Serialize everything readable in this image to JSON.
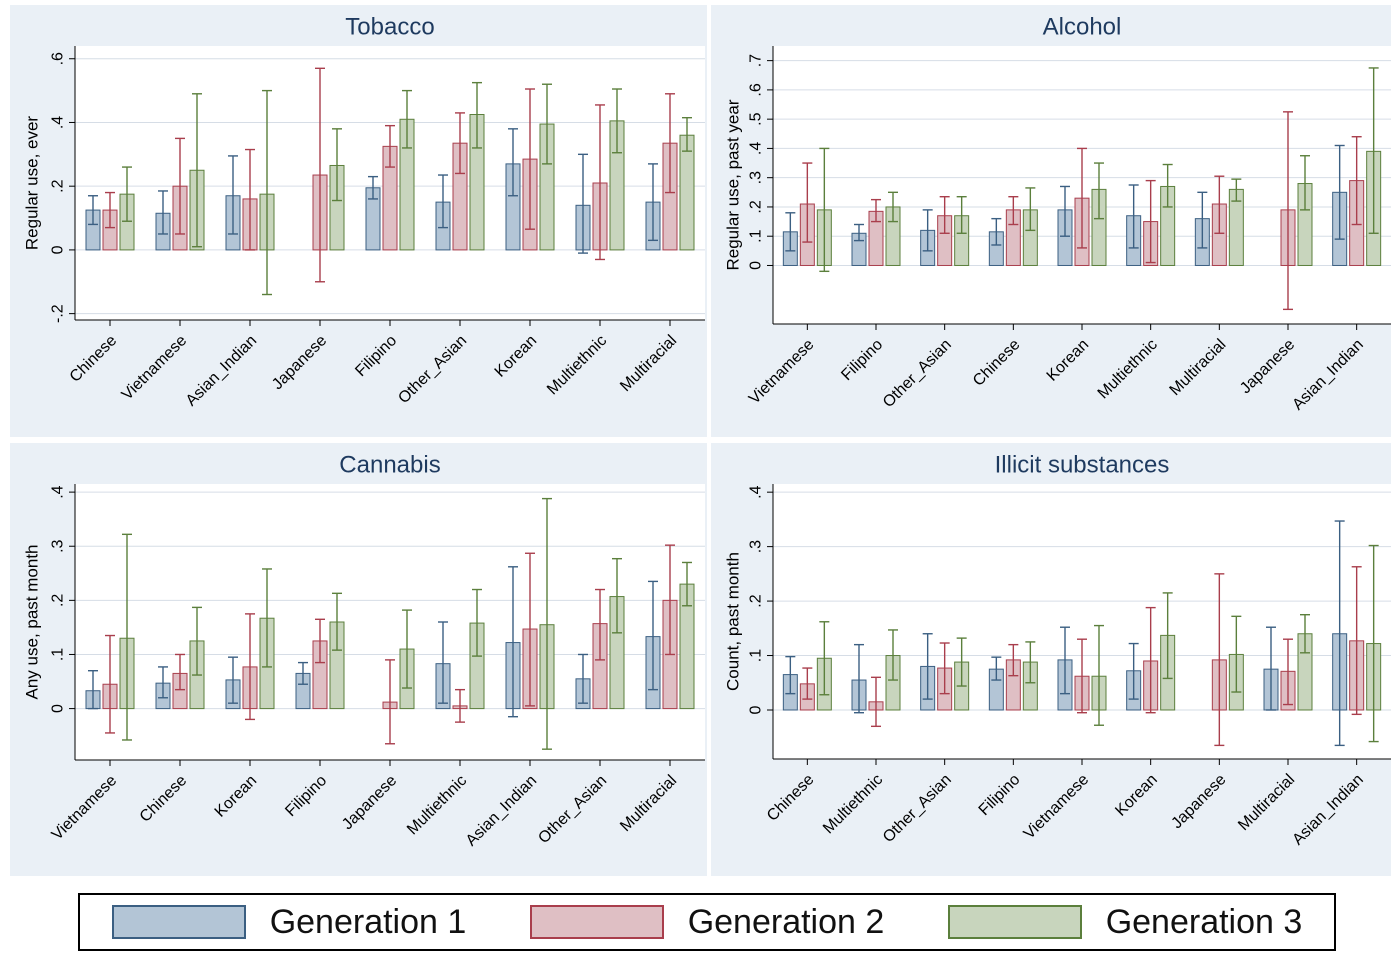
{
  "colors": {
    "gen1_fill": "#b3c5d6",
    "gen1_line": "#3b5f82",
    "gen2_fill": "#dfbfc4",
    "gen2_line": "#a93e4c",
    "gen3_fill": "#c8d5bd",
    "gen3_line": "#5b7f3c",
    "title_text": "#1e3a5f",
    "panel_bg": "#eaf0f6",
    "grid": "#d6dde6"
  },
  "legend": {
    "position": "bottom",
    "items": [
      {
        "label": "Generation 1",
        "series": 0
      },
      {
        "label": "Generation 2",
        "series": 1
      },
      {
        "label": "Generation 3",
        "series": 2
      }
    ]
  },
  "chart_data": [
    {
      "type": "bar",
      "title": "Tobacco",
      "ylabel": "Regular use, ever",
      "ylim": [
        -0.22,
        0.64
      ],
      "yticks": [
        -0.2,
        0,
        0.2,
        0.4,
        0.6
      ],
      "ytick_labels": [
        "-.2",
        "0",
        ".2",
        ".4",
        ".6"
      ],
      "categories": [
        "Chinese",
        "Vietnamese",
        "Asian_Indian",
        "Japanese",
        "Filipino",
        "Other_Asian",
        "Korean",
        "Multiethnic",
        "Multiracial"
      ],
      "series": [
        {
          "name": "Generation 1",
          "values": [
            0.125,
            0.115,
            0.17,
            null,
            0.195,
            0.15,
            0.27,
            0.14,
            0.15
          ],
          "lower": [
            0.08,
            0.05,
            0.05,
            null,
            0.16,
            0.07,
            0.17,
            -0.01,
            0.03
          ],
          "upper": [
            0.17,
            0.185,
            0.295,
            null,
            0.23,
            0.235,
            0.38,
            0.3,
            0.27
          ]
        },
        {
          "name": "Generation 2",
          "values": [
            0.125,
            0.2,
            0.16,
            0.235,
            0.325,
            0.335,
            0.285,
            0.21,
            0.335
          ],
          "lower": [
            0.07,
            0.05,
            0.0,
            -0.1,
            0.26,
            0.24,
            0.065,
            -0.03,
            0.18
          ],
          "upper": [
            0.18,
            0.35,
            0.315,
            0.57,
            0.39,
            0.43,
            0.505,
            0.455,
            0.49
          ]
        },
        {
          "name": "Generation 3",
          "values": [
            0.175,
            0.25,
            0.175,
            0.265,
            0.41,
            0.425,
            0.395,
            0.405,
            0.36
          ],
          "lower": [
            0.09,
            0.01,
            -0.14,
            0.155,
            0.32,
            0.32,
            0.27,
            0.305,
            0.31
          ],
          "upper": [
            0.26,
            0.49,
            0.5,
            0.38,
            0.5,
            0.525,
            0.52,
            0.505,
            0.415
          ]
        }
      ]
    },
    {
      "type": "bar",
      "title": "Alcohol",
      "ylabel": "Regular use, past year",
      "ylim": [
        -0.2,
        0.75
      ],
      "yticks": [
        0,
        0.1,
        0.2,
        0.3,
        0.4,
        0.5,
        0.6,
        0.7
      ],
      "ytick_labels": [
        "0",
        ".1",
        ".2",
        ".3",
        ".4",
        ".5",
        ".6",
        ".7"
      ],
      "categories": [
        "Vietnamese",
        "Filipino",
        "Other_Asian",
        "Chinese",
        "Korean",
        "Multiethnic",
        "Multiracial",
        "Japanese",
        "Asian_Indian"
      ],
      "series": [
        {
          "name": "Generation 1",
          "values": [
            0.115,
            0.11,
            0.12,
            0.115,
            0.19,
            0.17,
            0.16,
            null,
            0.25
          ],
          "lower": [
            0.05,
            0.085,
            0.05,
            0.07,
            0.1,
            0.06,
            0.06,
            null,
            0.09
          ],
          "upper": [
            0.18,
            0.14,
            0.19,
            0.16,
            0.27,
            0.275,
            0.25,
            null,
            0.41
          ]
        },
        {
          "name": "Generation 2",
          "values": [
            0.21,
            0.185,
            0.17,
            0.19,
            0.23,
            0.15,
            0.21,
            0.19,
            0.29
          ],
          "lower": [
            0.08,
            0.15,
            0.11,
            0.14,
            0.06,
            0.01,
            0.11,
            -0.15,
            0.14
          ],
          "upper": [
            0.35,
            0.225,
            0.235,
            0.235,
            0.4,
            0.29,
            0.305,
            0.525,
            0.44
          ]
        },
        {
          "name": "Generation 3",
          "values": [
            0.19,
            0.2,
            0.17,
            0.19,
            0.26,
            0.27,
            0.26,
            0.28,
            0.39
          ],
          "lower": [
            -0.02,
            0.15,
            0.11,
            0.12,
            0.16,
            0.2,
            0.22,
            0.19,
            0.11
          ],
          "upper": [
            0.4,
            0.25,
            0.235,
            0.265,
            0.35,
            0.345,
            0.295,
            0.375,
            0.675
          ]
        }
      ]
    },
    {
      "type": "bar",
      "title": "Cannabis",
      "ylabel": "Any use, past month",
      "ylim": [
        -0.095,
        0.415
      ],
      "yticks": [
        0,
        0.1,
        0.2,
        0.3,
        0.4
      ],
      "ytick_labels": [
        "0",
        ".1",
        ".2",
        ".3",
        ".4"
      ],
      "categories": [
        "Vietnamese",
        "Chinese",
        "Korean",
        "Filipino",
        "Japanese",
        "Multiethnic",
        "Asian_Indian",
        "Other_Asian",
        "Multiracial"
      ],
      "series": [
        {
          "name": "Generation 1",
          "values": [
            0.033,
            0.047,
            0.053,
            0.065,
            null,
            0.083,
            0.122,
            0.055,
            0.133
          ],
          "lower": [
            0.0,
            0.02,
            0.01,
            0.045,
            null,
            0.01,
            -0.015,
            0.01,
            0.035
          ],
          "upper": [
            0.07,
            0.077,
            0.095,
            0.085,
            null,
            0.16,
            0.262,
            0.1,
            0.235
          ]
        },
        {
          "name": "Generation 2",
          "values": [
            0.045,
            0.065,
            0.077,
            0.125,
            0.012,
            0.005,
            0.147,
            0.157,
            0.2
          ],
          "lower": [
            -0.045,
            0.035,
            -0.02,
            0.085,
            -0.065,
            -0.025,
            0.005,
            0.09,
            0.1
          ],
          "upper": [
            0.135,
            0.1,
            0.175,
            0.165,
            0.09,
            0.035,
            0.287,
            0.22,
            0.302
          ]
        },
        {
          "name": "Generation 3",
          "values": [
            0.13,
            0.125,
            0.167,
            0.16,
            0.11,
            0.158,
            0.155,
            0.207,
            0.23
          ],
          "lower": [
            -0.058,
            0.062,
            0.077,
            0.108,
            0.038,
            0.097,
            -0.075,
            0.14,
            0.19
          ],
          "upper": [
            0.322,
            0.187,
            0.258,
            0.213,
            0.182,
            0.22,
            0.388,
            0.277,
            0.27
          ]
        }
      ]
    },
    {
      "type": "bar",
      "title": "Illicit substances",
      "ylabel": "Count, past month",
      "ylim": [
        -0.09,
        0.415
      ],
      "yticks": [
        0,
        0.1,
        0.2,
        0.3,
        0.4
      ],
      "ytick_labels": [
        "0",
        ".1",
        ".2",
        ".3",
        ".4"
      ],
      "categories": [
        "Chinese",
        "Multiethnic",
        "Other_Asian",
        "Filipino",
        "Vietnamese",
        "Korean",
        "Japanese",
        "Multiracial",
        "Asian_Indian"
      ],
      "series": [
        {
          "name": "Generation 1",
          "values": [
            0.065,
            0.055,
            0.08,
            0.075,
            0.092,
            0.072,
            null,
            0.075,
            0.14
          ],
          "lower": [
            0.03,
            -0.005,
            0.02,
            0.055,
            0.03,
            0.02,
            null,
            0.0,
            -0.065
          ],
          "upper": [
            0.098,
            0.12,
            0.14,
            0.097,
            0.152,
            0.122,
            null,
            0.152,
            0.347
          ]
        },
        {
          "name": "Generation 2",
          "values": [
            0.048,
            0.015,
            0.077,
            0.092,
            0.062,
            0.09,
            0.092,
            0.071,
            0.127
          ],
          "lower": [
            0.02,
            -0.03,
            0.03,
            0.063,
            -0.005,
            -0.005,
            -0.065,
            0.01,
            -0.008
          ],
          "upper": [
            0.077,
            0.06,
            0.123,
            0.12,
            0.13,
            0.188,
            0.25,
            0.13,
            0.263
          ]
        },
        {
          "name": "Generation 3",
          "values": [
            0.095,
            0.1,
            0.088,
            0.088,
            0.062,
            0.137,
            0.102,
            0.14,
            0.122
          ],
          "lower": [
            0.028,
            0.055,
            0.044,
            0.05,
            -0.028,
            0.058,
            0.033,
            0.105,
            -0.058
          ],
          "upper": [
            0.162,
            0.147,
            0.132,
            0.125,
            0.155,
            0.215,
            0.172,
            0.175,
            0.302
          ]
        }
      ]
    }
  ]
}
